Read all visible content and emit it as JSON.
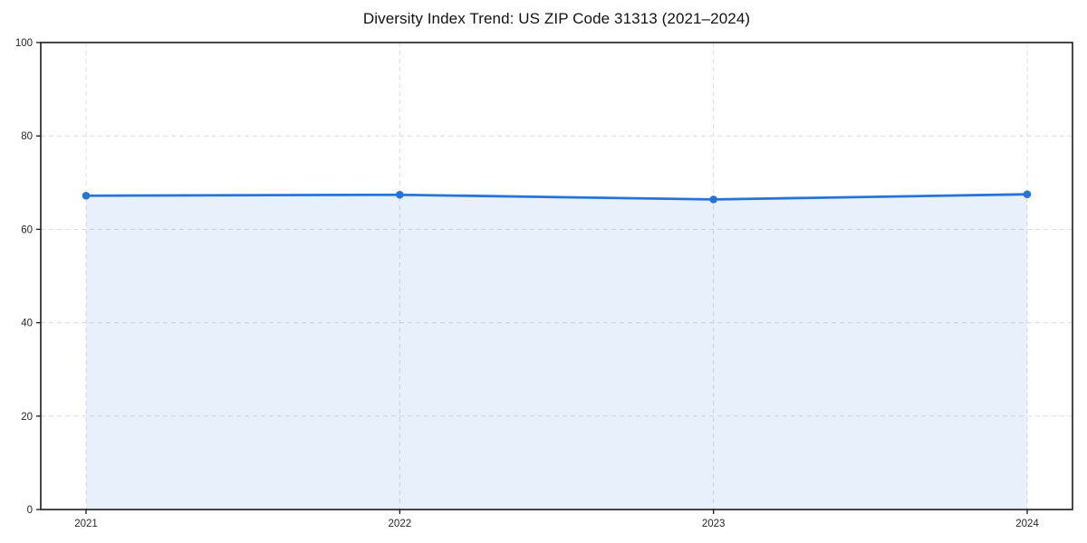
{
  "chart_data": {
    "type": "area",
    "title": "Diversity Index Trend: US ZIP Code 31313 (2021–2024)",
    "categories": [
      "2021",
      "2022",
      "2023",
      "2024"
    ],
    "values": [
      67.2,
      67.4,
      66.4,
      67.5
    ],
    "xlabel": "",
    "ylabel": "",
    "ylim": [
      0,
      100
    ],
    "yticks": [
      0,
      20,
      40,
      60,
      80,
      100
    ],
    "grid": true,
    "grid_style": "dashed",
    "legend": "none",
    "colors": {
      "line": "#2575d8",
      "marker": "#2575d8",
      "fill": "#2575d8",
      "fill_opacity": 0.11,
      "grid": "#dcdcdc",
      "spine": "#1a1a1a",
      "tick_label": "#262626",
      "background": "#ffffff"
    }
  }
}
